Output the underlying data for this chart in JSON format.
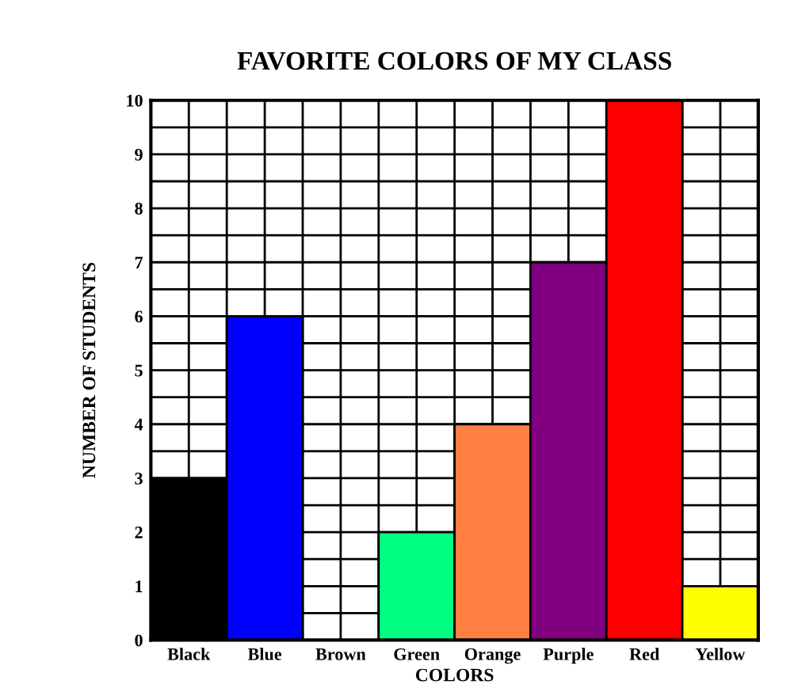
{
  "chart_data": {
    "type": "bar",
    "title": "FAVORITE COLORS OF MY CLASS",
    "xlabel": "COLORS",
    "ylabel": "NUMBER OF STUDENTS",
    "categories": [
      "Black",
      "Blue",
      "Brown",
      "Green",
      "Orange",
      "Purple",
      "Red",
      "Yellow"
    ],
    "values": [
      3,
      6,
      0,
      2,
      4,
      7,
      10,
      1
    ],
    "colors": [
      "#000000",
      "#0000ff",
      null,
      "#00ff80",
      "#ff8040",
      "#800080",
      "#ff0000",
      "#ffff00"
    ],
    "ylim": [
      0,
      10
    ],
    "yticks": [
      0,
      1,
      2,
      3,
      4,
      5,
      6,
      7,
      8,
      9,
      10
    ],
    "grid": true
  }
}
